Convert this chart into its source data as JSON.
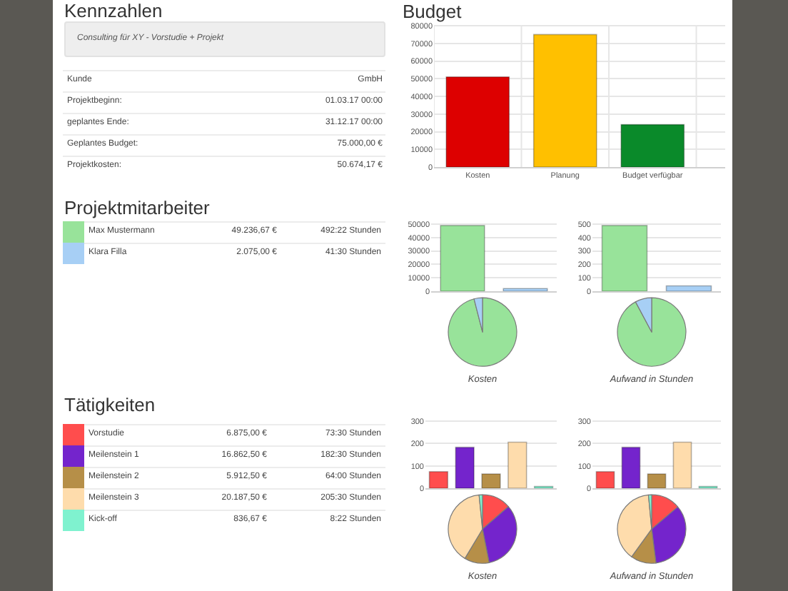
{
  "chart_data": [
    {
      "type": "other",
      "title": "Kennzahlen",
      "subtitle": "Consulting für XY - Vorstudie + Projekt",
      "annotations": [
        "Kunde",
        "GmbH",
        "Projektbeginn:",
        "01.03.17 00:00",
        "geplantes Ende:",
        "31.12.17 00:00",
        "Geplantes Budget:",
        "75.000,00 €",
        "Projektkosten:",
        "50.674,17 €"
      ]
    },
    {
      "type": "bar",
      "title": "Budget",
      "categories": [
        "Kosten",
        "Planung",
        "Budget verfügbar"
      ],
      "values": [
        51000,
        75000,
        24000
      ],
      "colors": [
        "#dd0000",
        "#ffc000",
        "#0a8a2a"
      ],
      "ylim": [
        0,
        80000
      ],
      "yticks": [
        0,
        10000,
        20000,
        30000,
        40000,
        50000,
        60000,
        70000,
        80000
      ],
      "grid": true
    },
    {
      "type": "other",
      "title": "Projektmitarbeiter",
      "categories": [
        "Max Mustermann",
        "Klara Filla"
      ],
      "colors": [
        "#98e39a",
        "#a7cff5"
      ],
      "annotations": [
        "49.236,67 €",
        "492:22 Stunden",
        "2.075,00 €",
        "41:30 Stunden"
      ]
    },
    {
      "type": "bar",
      "categories": [
        null,
        null
      ],
      "values": [
        49000,
        2000
      ],
      "colors": [
        "#98e39a",
        "#a7cff5"
      ],
      "ylim": [
        0,
        50000
      ],
      "yticks": [
        0,
        10000,
        20000,
        30000,
        40000,
        50000
      ],
      "grid": "y",
      "tick_labels": "y"
    },
    {
      "type": "bar",
      "categories": [
        null,
        null
      ],
      "values": [
        490,
        40
      ],
      "colors": [
        "#98e39a",
        "#a7cff5"
      ],
      "ylim": [
        0,
        500
      ],
      "yticks": [
        0,
        100,
        200,
        300,
        400,
        500
      ],
      "grid": "y",
      "tick_labels": "y"
    },
    {
      "type": "pie",
      "title": "Kosten",
      "categories": [
        null,
        null
      ],
      "values": [
        96.0,
        4.0
      ],
      "colors": [
        "#98e39a",
        "#a7cff5"
      ]
    },
    {
      "type": "pie",
      "title": "Aufwand in Stunden",
      "categories": [
        null,
        null
      ],
      "values": [
        92.2,
        7.8
      ],
      "colors": [
        "#98e39a",
        "#a7cff5"
      ]
    },
    {
      "type": "other",
      "title": "Tätigkeiten",
      "categories": [
        "Vorstudie",
        "Meilenstein 1",
        "Meilenstein 2",
        "Meilenstein 3",
        "Kick-off"
      ],
      "colors": [
        "#ff4d4d",
        "#7424cc",
        "#b68f48",
        "#fedcac",
        "#7ff2cf"
      ],
      "annotations": [
        "6.875,00 €",
        "73:30 Stunden",
        "16.862,50 €",
        "182:30 Stunden",
        "5.912,50 €",
        "64:00 Stunden",
        "20.187,50 €",
        "205:30 Stunden",
        "836,67 €",
        "8:22 Stunden"
      ]
    },
    {
      "type": "bar",
      "categories": [
        null,
        null,
        null,
        null,
        null
      ],
      "values": [
        74,
        183,
        64,
        206,
        8
      ],
      "colors": [
        "#ff4d4d",
        "#7424cc",
        "#b68f48",
        "#fedcac",
        "#7ff2cf"
      ],
      "ylim": [
        0,
        300
      ],
      "yticks": [
        0,
        100,
        200,
        300
      ],
      "grid": "y",
      "tick_labels": "y"
    },
    {
      "type": "bar",
      "categories": [
        null,
        null,
        null,
        null,
        null
      ],
      "values": [
        74,
        183,
        64,
        206,
        8
      ],
      "colors": [
        "#ff4d4d",
        "#7424cc",
        "#b68f48",
        "#fedcac",
        "#7ff2cf"
      ],
      "ylim": [
        0,
        300
      ],
      "yticks": [
        0,
        100,
        200,
        300
      ],
      "grid": "y",
      "tick_labels": "y"
    },
    {
      "type": "pie",
      "title": "Kosten",
      "categories": [
        null,
        null,
        null,
        null,
        null
      ],
      "values": [
        13.6,
        33.3,
        11.7,
        39.8,
        1.6
      ],
      "colors": [
        "#ff4d4d",
        "#7424cc",
        "#b68f48",
        "#fedcac",
        "#7ff2cf"
      ]
    },
    {
      "type": "pie",
      "title": "Aufwand in Stunden",
      "categories": [
        null,
        null,
        null,
        null,
        null
      ],
      "values": [
        13.8,
        34.2,
        12.0,
        38.5,
        1.5
      ],
      "colors": [
        "#ff4d4d",
        "#7424cc",
        "#b68f48",
        "#fedcac",
        "#7ff2cf"
      ]
    }
  ]
}
